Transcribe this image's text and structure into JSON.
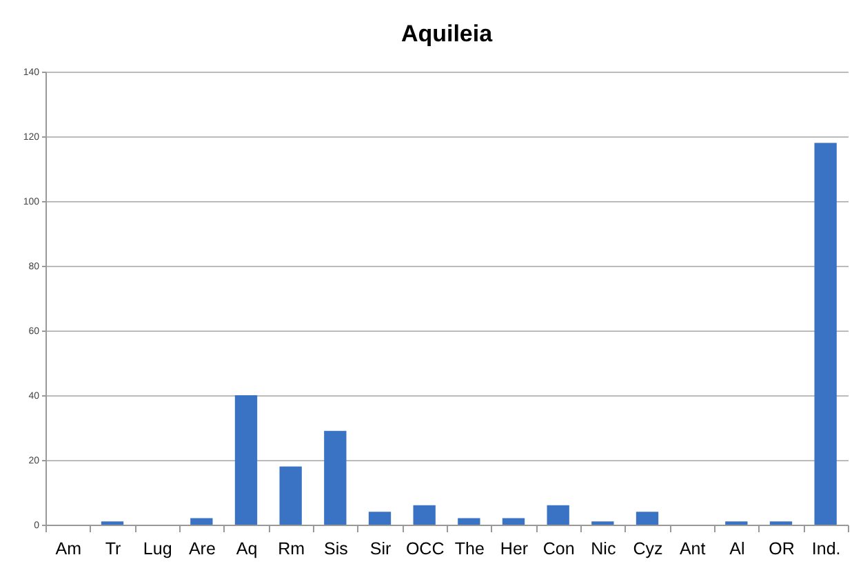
{
  "chart_data": {
    "type": "bar",
    "title": "Aquileia",
    "categories": [
      "Am",
      "Tr",
      "Lug",
      "Are",
      "Aq",
      "Rm",
      "Sis",
      "Sir",
      "OCC",
      "The",
      "Her",
      "Con",
      "Nic",
      "Cyz",
      "Ant",
      "Al",
      "OR",
      "Ind."
    ],
    "values": [
      0,
      1,
      0,
      2,
      40,
      18,
      29,
      4,
      6,
      2,
      2,
      6,
      1,
      4,
      0,
      1,
      1,
      118
    ],
    "color": "#3b73c4",
    "ylim": [
      0,
      140
    ],
    "yticks": [
      0,
      20,
      40,
      60,
      80,
      100,
      120,
      140
    ],
    "grid": "y"
  }
}
